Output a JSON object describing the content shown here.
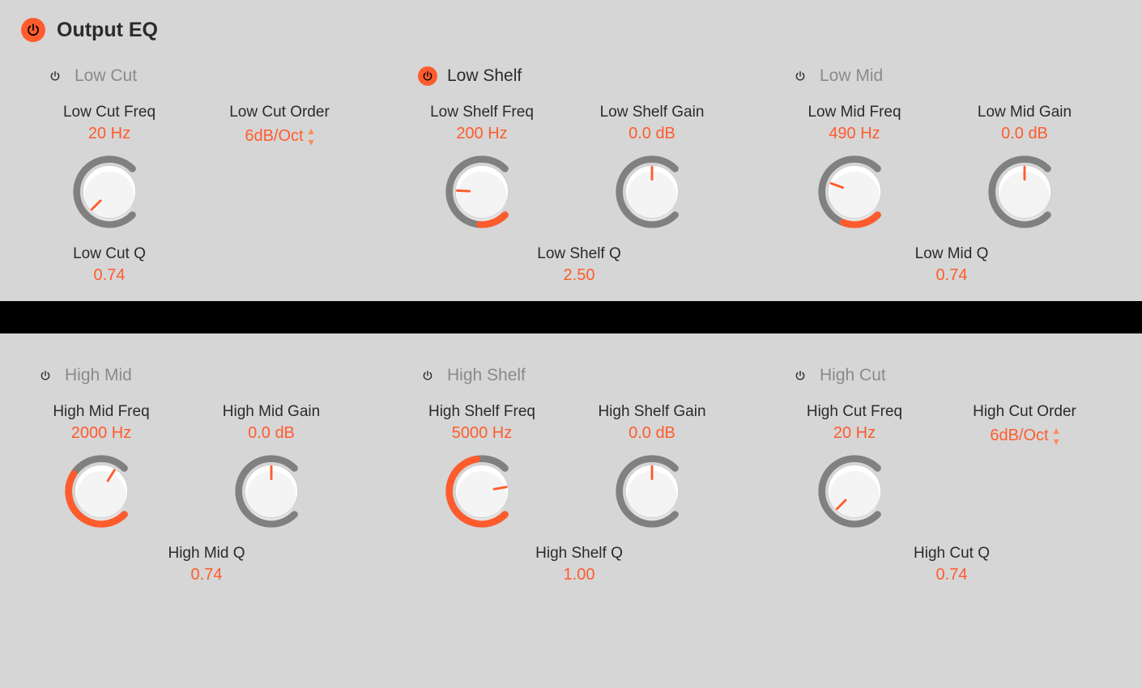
{
  "colors": {
    "accent": "#ff5c2e",
    "text": "#2b2b2b",
    "muted": "#8a8a8a",
    "bg": "#d6d6d6",
    "knob_track": "#808080",
    "knob_face_top": "#ffffff",
    "knob_face_bottom": "#e6e6e6"
  },
  "title": "Output EQ",
  "title_power_active": true,
  "bands": {
    "low_cut": {
      "title": "Low Cut",
      "active": false,
      "param1": {
        "label": "Low Cut Freq",
        "value": "20 Hz",
        "knob_fill": 0.0,
        "knob_angle": -135
      },
      "param2": {
        "label": "Low Cut Order",
        "value": "6dB/Oct",
        "type": "stepper"
      },
      "q": {
        "label": "Low Cut Q",
        "value": "0.74"
      }
    },
    "low_shelf": {
      "title": "Low Shelf",
      "active": true,
      "param1": {
        "label": "Low Shelf Freq",
        "value": "200 Hz",
        "knob_fill": 0.18,
        "knob_angle": -87
      },
      "param2": {
        "label": "Low Shelf Gain",
        "value": "0.0 dB",
        "knob_fill": 0.0,
        "knob_angle": 0,
        "center": true
      },
      "q": {
        "label": "Low Shelf Q",
        "value": "2.50"
      }
    },
    "low_mid": {
      "title": "Low Mid",
      "active": false,
      "param1": {
        "label": "Low Mid Freq",
        "value": "490 Hz",
        "knob_fill": 0.24,
        "knob_angle": -70
      },
      "param2": {
        "label": "Low Mid Gain",
        "value": "0.0 dB",
        "knob_fill": 0.0,
        "knob_angle": 0,
        "center": true
      },
      "q": {
        "label": "Low Mid Q",
        "value": "0.74"
      }
    },
    "high_mid": {
      "title": "High Mid",
      "active": false,
      "param1": {
        "label": "High Mid Freq",
        "value": "2000 Hz",
        "knob_fill": 0.62,
        "knob_angle": 32
      },
      "param2": {
        "label": "High Mid Gain",
        "value": "0.0 dB",
        "knob_fill": 0.0,
        "knob_angle": 0,
        "center": true
      },
      "q": {
        "label": "High Mid Q",
        "value": "0.74"
      }
    },
    "high_shelf": {
      "title": "High Shelf",
      "active": false,
      "param1": {
        "label": "High Shelf Freq",
        "value": "5000 Hz",
        "knob_fill": 0.8,
        "knob_angle": 80
      },
      "param2": {
        "label": "High Shelf Gain",
        "value": "0.0 dB",
        "knob_fill": 0.0,
        "knob_angle": 0,
        "center": true
      },
      "q": {
        "label": "High Shelf Q",
        "value": "1.00"
      }
    },
    "high_cut": {
      "title": "High Cut",
      "active": false,
      "param1": {
        "label": "High Cut Freq",
        "value": "20 Hz",
        "knob_fill": 0.0,
        "knob_angle": -135
      },
      "param2": {
        "label": "High Cut Order",
        "value": "6dB/Oct",
        "type": "stepper"
      },
      "q": {
        "label": "High Cut Q",
        "value": "0.74"
      }
    }
  },
  "knob_style": {
    "size": 96,
    "track_width": 9,
    "track_color": "#808080",
    "fill_color": "#ff5c2e",
    "face_gradient": [
      "#ffffff",
      "#e6e6e6"
    ],
    "start_angle_deg": -225,
    "sweep_deg": 270
  }
}
